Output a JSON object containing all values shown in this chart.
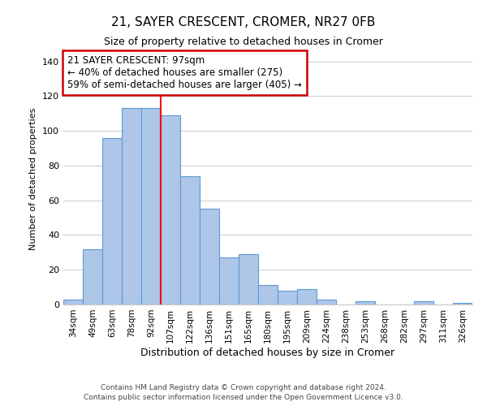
{
  "title": "21, SAYER CRESCENT, CROMER, NR27 0FB",
  "subtitle": "Size of property relative to detached houses in Cromer",
  "xlabel": "Distribution of detached houses by size in Cromer",
  "ylabel": "Number of detached properties",
  "bar_labels": [
    "34sqm",
    "49sqm",
    "63sqm",
    "78sqm",
    "92sqm",
    "107sqm",
    "122sqm",
    "136sqm",
    "151sqm",
    "165sqm",
    "180sqm",
    "195sqm",
    "209sqm",
    "224sqm",
    "238sqm",
    "253sqm",
    "268sqm",
    "282sqm",
    "297sqm",
    "311sqm",
    "326sqm"
  ],
  "bar_values": [
    3,
    32,
    96,
    113,
    113,
    109,
    74,
    55,
    27,
    29,
    11,
    8,
    9,
    3,
    0,
    2,
    0,
    0,
    2,
    0,
    1
  ],
  "bar_color": "#aec6e8",
  "bar_edge_color": "#5b9bd5",
  "ylim": [
    0,
    145
  ],
  "yticks": [
    0,
    20,
    40,
    60,
    80,
    100,
    120,
    140
  ],
  "red_line_x": 4.5,
  "annotation_title": "21 SAYER CRESCENT: 97sqm",
  "annotation_line1": "← 40% of detached houses are smaller (275)",
  "annotation_line2": "59% of semi-detached houses are larger (405) →",
  "annotation_box_color": "#ffffff",
  "annotation_box_edge_color": "#cc0000",
  "footer1": "Contains HM Land Registry data © Crown copyright and database right 2024.",
  "footer2": "Contains public sector information licensed under the Open Government Licence v3.0.",
  "background_color": "#ffffff",
  "grid_color": "#cccccc"
}
